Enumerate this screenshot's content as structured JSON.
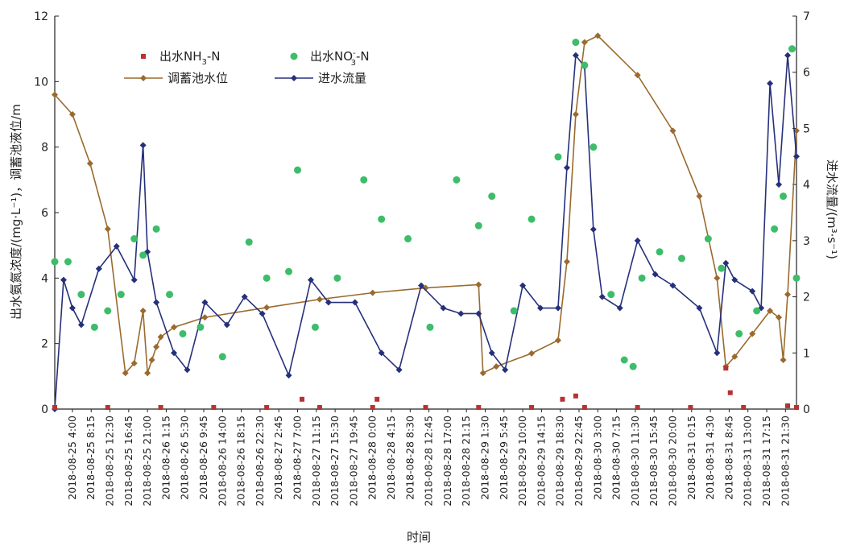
{
  "chart_data": {
    "type": "line",
    "xlabel": "时间",
    "ylabel_left": "出水氨氮浓度/(mg·L⁻¹)，调蓄池液位/m",
    "ylabel_right": "进水流量/(m³·s⁻¹)",
    "ylim_left": [
      0,
      12
    ],
    "ylim_right": [
      0,
      7
    ],
    "yticks_left": [
      "0",
      "2",
      "4",
      "6",
      "8",
      "10",
      "12"
    ],
    "yticks_right": [
      "0",
      "1",
      "2",
      "3",
      "4",
      "5",
      "6",
      "7"
    ],
    "x_tick_labels": [
      "2018-08-25 4:00",
      "2018-08-25 8:15",
      "2018-08-25 12:30",
      "2018-08-25 16:45",
      "2018-08-25 21:00",
      "2018-08-26 1:15",
      "2018-08-26 5:30",
      "2018-08-26 9:45",
      "2018-08-26 14:00",
      "2018-08-26 18:15",
      "2018-08-26 22:30",
      "2018-08-27 2:45",
      "2018-08-27 7:00",
      "2018-08-27 11:15",
      "2018-08-27 15:30",
      "2018-08-27 19:45",
      "2018-08-28 0:00",
      "2018-08-28 4:15",
      "2018-08-28 8:30",
      "2018-08-28 12:45",
      "2018-08-28 17:00",
      "2018-08-28 21:15",
      "2018-08-29 1:30",
      "2018-08-29 5:45",
      "2018-08-29 10:00",
      "2018-08-29 14:15",
      "2018-08-29 18:30",
      "2018-08-29 22:45",
      "2018-08-30 3:00",
      "2018-08-30 7:15",
      "2018-08-30 11:30",
      "2018-08-30 15:45",
      "2018-08-30 20:00",
      "2018-08-31 0:15",
      "2018-08-31 4:30",
      "2018-08-31 8:45",
      "2018-08-31 13:00",
      "2018-08-31 17:15",
      "2018-08-31 21:30"
    ],
    "x_start": "2018-08-25 0:00",
    "x_end": "2018-09-01 0:00",
    "legend": [
      {
        "key": "nh3",
        "label_main": "出水NH",
        "label_sub": "3",
        "label_tail": "-N",
        "marker": "square",
        "color": "#b83232"
      },
      {
        "key": "no3",
        "label_main": "出水NO",
        "label_sub": "3",
        "label_sup": "-",
        "label_tail": "-N",
        "marker": "circle",
        "color": "#3dbd6a"
      },
      {
        "key": "level",
        "label": "调蓄池水位",
        "marker": "diamond-line",
        "color": "#9a6a2e"
      },
      {
        "key": "flow",
        "label": "进水流量",
        "marker": "diamond-line",
        "color": "#26307a"
      }
    ],
    "series": [
      {
        "name": "出水NH3-N",
        "axis": "left",
        "color": "#b83232",
        "style": "square",
        "x": [
          "2018-08-25 0:00",
          "2018-08-25 12:00",
          "2018-08-26 0:00",
          "2018-08-26 12:00",
          "2018-08-27 0:00",
          "2018-08-27 8:00",
          "2018-08-27 12:00",
          "2018-08-28 0:00",
          "2018-08-28 1:00",
          "2018-08-28 12:00",
          "2018-08-29 0:00",
          "2018-08-29 12:00",
          "2018-08-29 19:00",
          "2018-08-29 22:00",
          "2018-08-30 0:00",
          "2018-08-30 12:00",
          "2018-08-31 0:00",
          "2018-08-31 8:00",
          "2018-08-31 9:00",
          "2018-08-31 12:00",
          "2018-08-31 22:00",
          "2018-09-01 0:00"
        ],
        "y": [
          0.05,
          0.05,
          0.05,
          0.05,
          0.05,
          0.3,
          0.05,
          0.05,
          0.3,
          0.05,
          0.05,
          0.05,
          0.3,
          0.4,
          0.05,
          0.05,
          0.05,
          1.25,
          0.5,
          0.05,
          0.1,
          0.05
        ]
      },
      {
        "name": "出水NO3--N",
        "axis": "left",
        "color": "#3dbd6a",
        "style": "circle",
        "x": [
          "2018-08-25 0:00",
          "2018-08-25 3:00",
          "2018-08-25 6:00",
          "2018-08-25 9:00",
          "2018-08-25 12:00",
          "2018-08-25 15:00",
          "2018-08-25 18:00",
          "2018-08-25 20:00",
          "2018-08-25 23:00",
          "2018-08-26 2:00",
          "2018-08-26 5:00",
          "2018-08-26 9:00",
          "2018-08-26 14:00",
          "2018-08-26 20:00",
          "2018-08-27 0:00",
          "2018-08-27 5:00",
          "2018-08-27 7:00",
          "2018-08-27 11:00",
          "2018-08-27 16:00",
          "2018-08-27 22:00",
          "2018-08-28 2:00",
          "2018-08-28 8:00",
          "2018-08-28 13:00",
          "2018-08-28 19:00",
          "2018-08-29 0:00",
          "2018-08-29 3:00",
          "2018-08-29 8:00",
          "2018-08-29 12:00",
          "2018-08-29 18:00",
          "2018-08-29 22:00",
          "2018-08-30 0:00",
          "2018-08-30 2:00",
          "2018-08-30 6:00",
          "2018-08-30 9:00",
          "2018-08-30 11:00",
          "2018-08-30 13:00",
          "2018-08-30 17:00",
          "2018-08-30 22:00",
          "2018-08-31 4:00",
          "2018-08-31 7:00",
          "2018-08-31 11:00",
          "2018-08-31 15:00",
          "2018-08-31 19:00",
          "2018-08-31 21:00",
          "2018-08-31 23:00",
          "2018-09-01 0:00"
        ],
        "y": [
          4.5,
          4.5,
          3.5,
          2.5,
          3.0,
          3.5,
          5.2,
          4.7,
          5.5,
          3.5,
          2.3,
          2.5,
          1.6,
          5.1,
          4.0,
          4.2,
          7.3,
          2.5,
          4.0,
          7.0,
          5.8,
          5.2,
          2.5,
          7.0,
          5.6,
          6.5,
          3.0,
          5.8,
          7.7,
          11.2,
          10.5,
          8.0,
          3.5,
          1.5,
          1.3,
          4.0,
          4.8,
          4.6,
          5.2,
          4.3,
          2.3,
          3.0,
          5.5,
          6.5,
          11.0,
          4.0
        ]
      },
      {
        "name": "调蓄池水位",
        "axis": "left",
        "color": "#9a6a2e",
        "style": "diamond-line",
        "x": [
          "2018-08-25 0:00",
          "2018-08-25 4:00",
          "2018-08-25 8:00",
          "2018-08-25 12:00",
          "2018-08-25 16:00",
          "2018-08-25 18:00",
          "2018-08-25 20:00",
          "2018-08-25 21:00",
          "2018-08-25 22:00",
          "2018-08-25 23:00",
          "2018-08-26 0:00",
          "2018-08-26 3:00",
          "2018-08-26 10:00",
          "2018-08-27 0:00",
          "2018-08-27 12:00",
          "2018-08-28 0:00",
          "2018-08-28 12:00",
          "2018-08-29 0:00",
          "2018-08-29 1:00",
          "2018-08-29 4:00",
          "2018-08-29 12:00",
          "2018-08-29 18:00",
          "2018-08-29 20:00",
          "2018-08-29 22:00",
          "2018-08-30 0:00",
          "2018-08-30 3:00",
          "2018-08-30 12:00",
          "2018-08-30 20:00",
          "2018-08-31 2:00",
          "2018-08-31 6:00",
          "2018-08-31 8:00",
          "2018-08-31 10:00",
          "2018-08-31 14:00",
          "2018-08-31 18:00",
          "2018-08-31 20:00",
          "2018-08-31 21:00",
          "2018-08-31 22:00",
          "2018-09-01 0:00"
        ],
        "y": [
          9.6,
          9.0,
          7.5,
          5.5,
          1.1,
          1.4,
          3.0,
          1.1,
          1.5,
          1.9,
          2.2,
          2.5,
          2.8,
          3.1,
          3.35,
          3.55,
          3.7,
          3.8,
          1.1,
          1.3,
          1.7,
          2.1,
          4.5,
          9.0,
          11.2,
          11.4,
          10.2,
          8.5,
          6.5,
          4.0,
          1.3,
          1.6,
          2.3,
          3.0,
          2.8,
          1.5,
          3.5,
          8.5
        ]
      },
      {
        "name": "进水流量",
        "axis": "right",
        "color": "#26307a",
        "style": "diamond-line",
        "x": [
          "2018-08-25 0:00",
          "2018-08-25 2:00",
          "2018-08-25 4:00",
          "2018-08-25 6:00",
          "2018-08-25 10:00",
          "2018-08-25 14:00",
          "2018-08-25 18:00",
          "2018-08-25 20:00",
          "2018-08-25 21:00",
          "2018-08-25 23:00",
          "2018-08-26 3:00",
          "2018-08-26 6:00",
          "2018-08-26 10:00",
          "2018-08-26 15:00",
          "2018-08-26 19:00",
          "2018-08-26 23:00",
          "2018-08-27 5:00",
          "2018-08-27 10:00",
          "2018-08-27 14:00",
          "2018-08-27 20:00",
          "2018-08-28 2:00",
          "2018-08-28 6:00",
          "2018-08-28 11:00",
          "2018-08-28 16:00",
          "2018-08-28 20:00",
          "2018-08-29 0:00",
          "2018-08-29 3:00",
          "2018-08-29 6:00",
          "2018-08-29 10:00",
          "2018-08-29 14:00",
          "2018-08-29 18:00",
          "2018-08-29 20:00",
          "2018-08-29 22:00",
          "2018-08-30 0:00",
          "2018-08-30 2:00",
          "2018-08-30 4:00",
          "2018-08-30 8:00",
          "2018-08-30 12:00",
          "2018-08-30 16:00",
          "2018-08-30 20:00",
          "2018-08-31 2:00",
          "2018-08-31 6:00",
          "2018-08-31 8:00",
          "2018-08-31 10:00",
          "2018-08-31 14:00",
          "2018-08-31 16:00",
          "2018-08-31 18:00",
          "2018-08-31 20:00",
          "2018-08-31 22:00",
          "2018-09-01 0:00"
        ],
        "y": [
          0,
          2.3,
          1.8,
          1.5,
          2.5,
          2.9,
          2.3,
          4.7,
          2.8,
          1.9,
          1.0,
          0.7,
          1.9,
          1.5,
          2.0,
          1.7,
          0.6,
          2.3,
          1.9,
          1.9,
          1.0,
          0.7,
          2.2,
          1.8,
          1.7,
          1.7,
          1.0,
          0.7,
          2.2,
          1.8,
          1.8,
          4.3,
          6.3,
          6.1,
          3.2,
          2.0,
          1.8,
          3.0,
          2.4,
          2.2,
          1.8,
          1.0,
          2.6,
          2.3,
          2.1,
          1.8,
          5.8,
          4.0,
          6.3,
          4.5
        ]
      }
    ]
  }
}
